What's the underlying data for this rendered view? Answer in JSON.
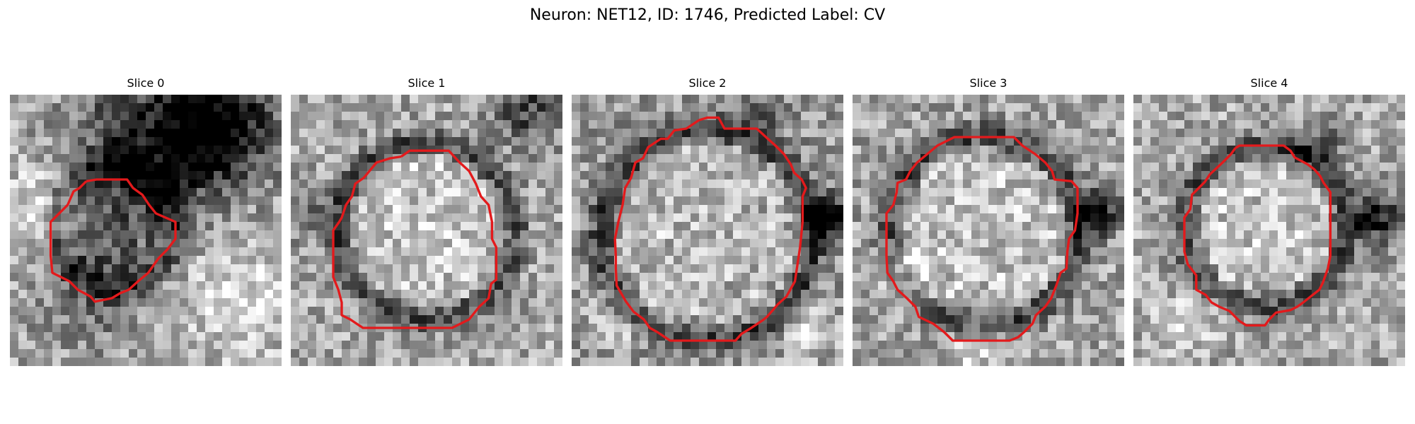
{
  "figure": {
    "title": "Neuron: NET12, ID: 1746, Predicted Label: CV"
  },
  "colors": {
    "contour": "#e31a1c",
    "background": "#ffffff"
  },
  "slices": [
    {
      "label": "Slice 0"
    },
    {
      "label": "Slice 1"
    },
    {
      "label": "Slice 2"
    },
    {
      "label": "Slice 3"
    },
    {
      "label": "Slice 4"
    }
  ]
}
